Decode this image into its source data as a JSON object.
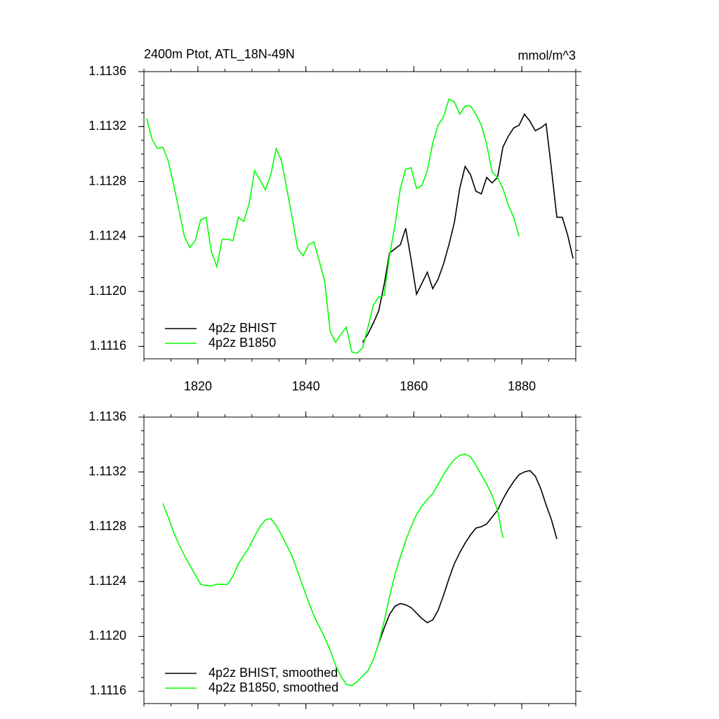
{
  "chart_data": [
    {
      "type": "line",
      "title": "2400m Ptot, ATL_18N-49N",
      "units": "mmol/m^3",
      "x": [
        1810.5,
        1811.5,
        1812.5,
        1813.5,
        1814.5,
        1815.5,
        1816.5,
        1817.5,
        1818.5,
        1819.5,
        1820.5,
        1821.5,
        1822.5,
        1823.5,
        1824.5,
        1825.5,
        1826.5,
        1827.5,
        1828.5,
        1829.5,
        1830.5,
        1831.5,
        1832.5,
        1833.5,
        1834.5,
        1835.5,
        1836.5,
        1837.5,
        1838.5,
        1839.5,
        1840.5,
        1841.5,
        1842.5,
        1843.5,
        1844.5,
        1845.5,
        1846.5,
        1847.5,
        1848.5,
        1849.5,
        1850.5,
        1851.5,
        1852.5,
        1853.5,
        1854.5,
        1855.5,
        1856.5,
        1857.5,
        1858.5,
        1859.5,
        1860.5,
        1861.5,
        1862.5,
        1863.5,
        1864.5,
        1865.5,
        1866.5,
        1867.5,
        1868.5,
        1869.5,
        1870.5,
        1871.5,
        1872.5,
        1873.5,
        1874.5,
        1875.5,
        1876.5,
        1877.5,
        1878.5,
        1879.5,
        1880.5,
        1881.5,
        1882.5,
        1883.5,
        1884.5,
        1885.5,
        1886.5,
        1887.5,
        1888.5,
        1889.5
      ],
      "series": [
        {
          "name": "4p2z BHIST",
          "color": "#000000",
          "values": [
            null,
            null,
            null,
            null,
            null,
            null,
            null,
            null,
            null,
            null,
            null,
            null,
            null,
            null,
            null,
            null,
            null,
            null,
            null,
            null,
            null,
            null,
            null,
            null,
            null,
            null,
            null,
            null,
            null,
            null,
            null,
            null,
            null,
            null,
            null,
            null,
            null,
            null,
            null,
            null,
            1.11163,
            1.11169,
            1.11177,
            1.11186,
            1.11205,
            1.11228,
            1.11231,
            1.11234,
            1.11246,
            1.11223,
            1.11198,
            1.11206,
            1.11214,
            1.11202,
            1.11209,
            1.1122,
            1.11234,
            1.1125,
            1.11275,
            1.11291,
            1.11285,
            1.11273,
            1.11271,
            1.11283,
            1.11279,
            1.11283,
            1.11305,
            1.11313,
            1.11319,
            1.11321,
            1.11329,
            1.11324,
            1.11317,
            1.11319,
            1.11322,
            1.11289,
            1.11254,
            1.11254,
            1.11241,
            1.11224
          ]
        },
        {
          "name": "4p2z B1850",
          "color": "#00ff00",
          "values": [
            1.11326,
            1.11311,
            1.11304,
            1.11305,
            1.11295,
            1.11278,
            1.11259,
            1.1124,
            1.11232,
            1.11237,
            1.11252,
            1.11254,
            1.11229,
            1.11218,
            1.11238,
            1.11238,
            1.11237,
            1.11254,
            1.11251,
            1.11264,
            1.11288,
            1.11281,
            1.11274,
            1.11285,
            1.11304,
            1.11295,
            1.11274,
            1.11253,
            1.11231,
            1.11226,
            1.11234,
            1.11236,
            1.11222,
            1.11207,
            1.11171,
            1.11163,
            1.11169,
            1.11174,
            1.11156,
            1.11155,
            1.11159,
            1.11174,
            1.1119,
            1.11196,
            1.11197,
            1.11226,
            1.11248,
            1.11275,
            1.11289,
            1.1129,
            1.11275,
            1.11277,
            1.11288,
            1.11308,
            1.11321,
            1.11327,
            1.1134,
            1.11338,
            1.11329,
            1.11335,
            1.11335,
            1.11329,
            1.11321,
            1.11307,
            1.11287,
            1.11283,
            1.11275,
            1.11263,
            1.11254,
            1.1124,
            null,
            null,
            null,
            null,
            null,
            null,
            null,
            null,
            null,
            null
          ]
        }
      ],
      "xlim": [
        1810,
        1890
      ],
      "xticks": [
        1820,
        1840,
        1860,
        1880
      ],
      "xtick_labels": true,
      "ylim": [
        1.11151,
        1.1136
      ],
      "yticks": [
        1.1116,
        {
          "value": 1.112,
          "label": "1.1120"
        },
        1.1124,
        1.1128,
        1.1132,
        1.1136
      ]
    },
    {
      "type": "line",
      "x": [
        1813.5,
        1814.5,
        1815.5,
        1816.5,
        1817.5,
        1818.5,
        1819.5,
        1820.5,
        1821.5,
        1822.5,
        1823.5,
        1824.5,
        1825.5,
        1826.5,
        1827.5,
        1828.5,
        1829.5,
        1830.5,
        1831.5,
        1832.5,
        1833.5,
        1834.5,
        1835.5,
        1836.5,
        1837.5,
        1838.5,
        1839.5,
        1840.5,
        1841.5,
        1842.5,
        1843.5,
        1844.5,
        1845.5,
        1846.5,
        1847.5,
        1848.5,
        1849.5,
        1850.5,
        1851.5,
        1852.5,
        1853.5,
        1854.5,
        1855.5,
        1856.5,
        1857.5,
        1858.5,
        1859.5,
        1860.5,
        1861.5,
        1862.5,
        1863.5,
        1864.5,
        1865.5,
        1866.5,
        1867.5,
        1868.5,
        1869.5,
        1870.5,
        1871.5,
        1872.5,
        1873.5,
        1874.5,
        1875.5,
        1876.5,
        1877.5,
        1878.5,
        1879.5,
        1880.5,
        1881.5,
        1882.5,
        1883.5,
        1884.5,
        1885.5,
        1886.5
      ],
      "series": [
        {
          "name": "4p2z BHIST, smoothed",
          "color": "#000000",
          "values": [
            null,
            null,
            null,
            null,
            null,
            null,
            null,
            null,
            null,
            null,
            null,
            null,
            null,
            null,
            null,
            null,
            null,
            null,
            null,
            null,
            null,
            null,
            null,
            null,
            null,
            null,
            null,
            null,
            null,
            null,
            null,
            null,
            null,
            null,
            null,
            null,
            null,
            null,
            null,
            null,
            1.11195,
            1.11206,
            1.11216,
            1.11222,
            1.11224,
            1.11223,
            1.11221,
            1.11217,
            1.11213,
            1.1121,
            1.11212,
            1.11219,
            1.1123,
            1.11242,
            1.11253,
            1.11261,
            1.11268,
            1.11274,
            1.11279,
            1.1128,
            1.11282,
            1.11287,
            1.11292,
            1.113,
            1.11307,
            1.11313,
            1.11318,
            1.1132,
            1.11321,
            1.11317,
            1.11308,
            1.11296,
            1.11285,
            1.11271
          ]
        },
        {
          "name": "4p2z B1850, smoothed",
          "color": "#00ff00",
          "values": [
            1.11297,
            1.11287,
            1.11276,
            1.11267,
            1.11259,
            1.11252,
            1.11245,
            1.11238,
            1.11237,
            1.11237,
            1.11238,
            1.11238,
            1.11238,
            1.11244,
            1.11253,
            1.11259,
            1.11265,
            1.11273,
            1.1128,
            1.11285,
            1.11286,
            1.11281,
            1.11274,
            1.11266,
            1.11258,
            1.11247,
            1.11236,
            1.11225,
            1.11215,
            1.11207,
            1.11199,
            1.1119,
            1.11179,
            1.11171,
            1.11165,
            1.11164,
            1.11167,
            1.11171,
            1.11175,
            1.11183,
            1.11195,
            1.11211,
            1.11229,
            1.11245,
            1.11258,
            1.1127,
            1.1128,
            1.11289,
            1.11295,
            1.113,
            1.11304,
            1.11311,
            1.11318,
            1.11324,
            1.11329,
            1.11332,
            1.11333,
            1.11331,
            1.11325,
            1.11318,
            1.11311,
            1.11303,
            1.11292,
            1.11272,
            null,
            null,
            null,
            null,
            null,
            null,
            null,
            null,
            null,
            null
          ]
        }
      ],
      "xlim": [
        1810,
        1890
      ],
      "xticks": [
        1820,
        1840,
        1860,
        1880
      ],
      "xtick_labels": false,
      "ylim": [
        1.11151,
        1.1136
      ],
      "yticks": [
        1.1116,
        {
          "value": 1.112,
          "label": "1.1120"
        },
        1.1124,
        1.1128,
        1.1132,
        1.1136
      ]
    }
  ]
}
